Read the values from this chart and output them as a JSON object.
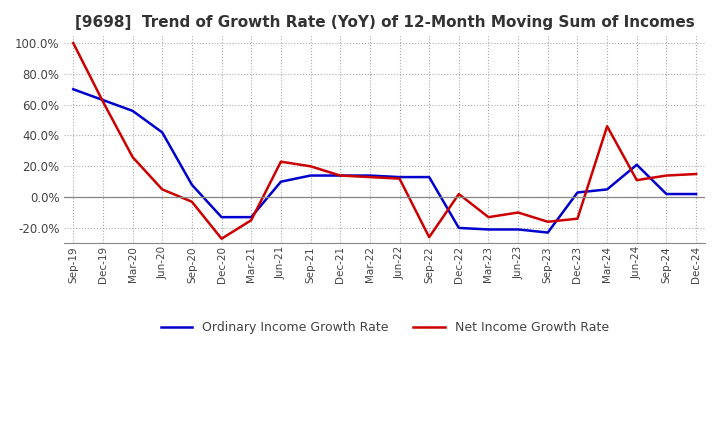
{
  "title": "[9698]  Trend of Growth Rate (YoY) of 12-Month Moving Sum of Incomes",
  "title_fontsize": 11,
  "ylim": [
    -30,
    105
  ],
  "yticks": [
    -20,
    0,
    20,
    40,
    60,
    80,
    100
  ],
  "background_color": "#ffffff",
  "grid_color": "#aaaaaa",
  "legend_labels": [
    "Ordinary Income Growth Rate",
    "Net Income Growth Rate"
  ],
  "legend_colors": [
    "#0000cc",
    "#cc0000"
  ],
  "x_labels": [
    "Sep-19",
    "Dec-19",
    "Mar-20",
    "Jun-20",
    "Sep-20",
    "Dec-20",
    "Mar-21",
    "Jun-21",
    "Sep-21",
    "Dec-21",
    "Mar-22",
    "Jun-22",
    "Sep-22",
    "Dec-22",
    "Mar-23",
    "Jun-23",
    "Sep-23",
    "Dec-23",
    "Mar-24",
    "Jun-24",
    "Sep-24",
    "Dec-24"
  ],
  "ordinary_income": [
    70,
    63,
    56,
    42,
    8,
    -13,
    -13,
    10,
    14,
    14,
    14,
    13,
    13,
    -20,
    -21,
    -21,
    -23,
    3,
    5,
    21,
    2,
    2
  ],
  "net_income": [
    100,
    62,
    26,
    5,
    -3,
    -27,
    -15,
    23,
    20,
    14,
    13,
    12,
    -26,
    2,
    -13,
    -10,
    -16,
    -14,
    46,
    11,
    14,
    15
  ],
  "line_width": 1.8
}
